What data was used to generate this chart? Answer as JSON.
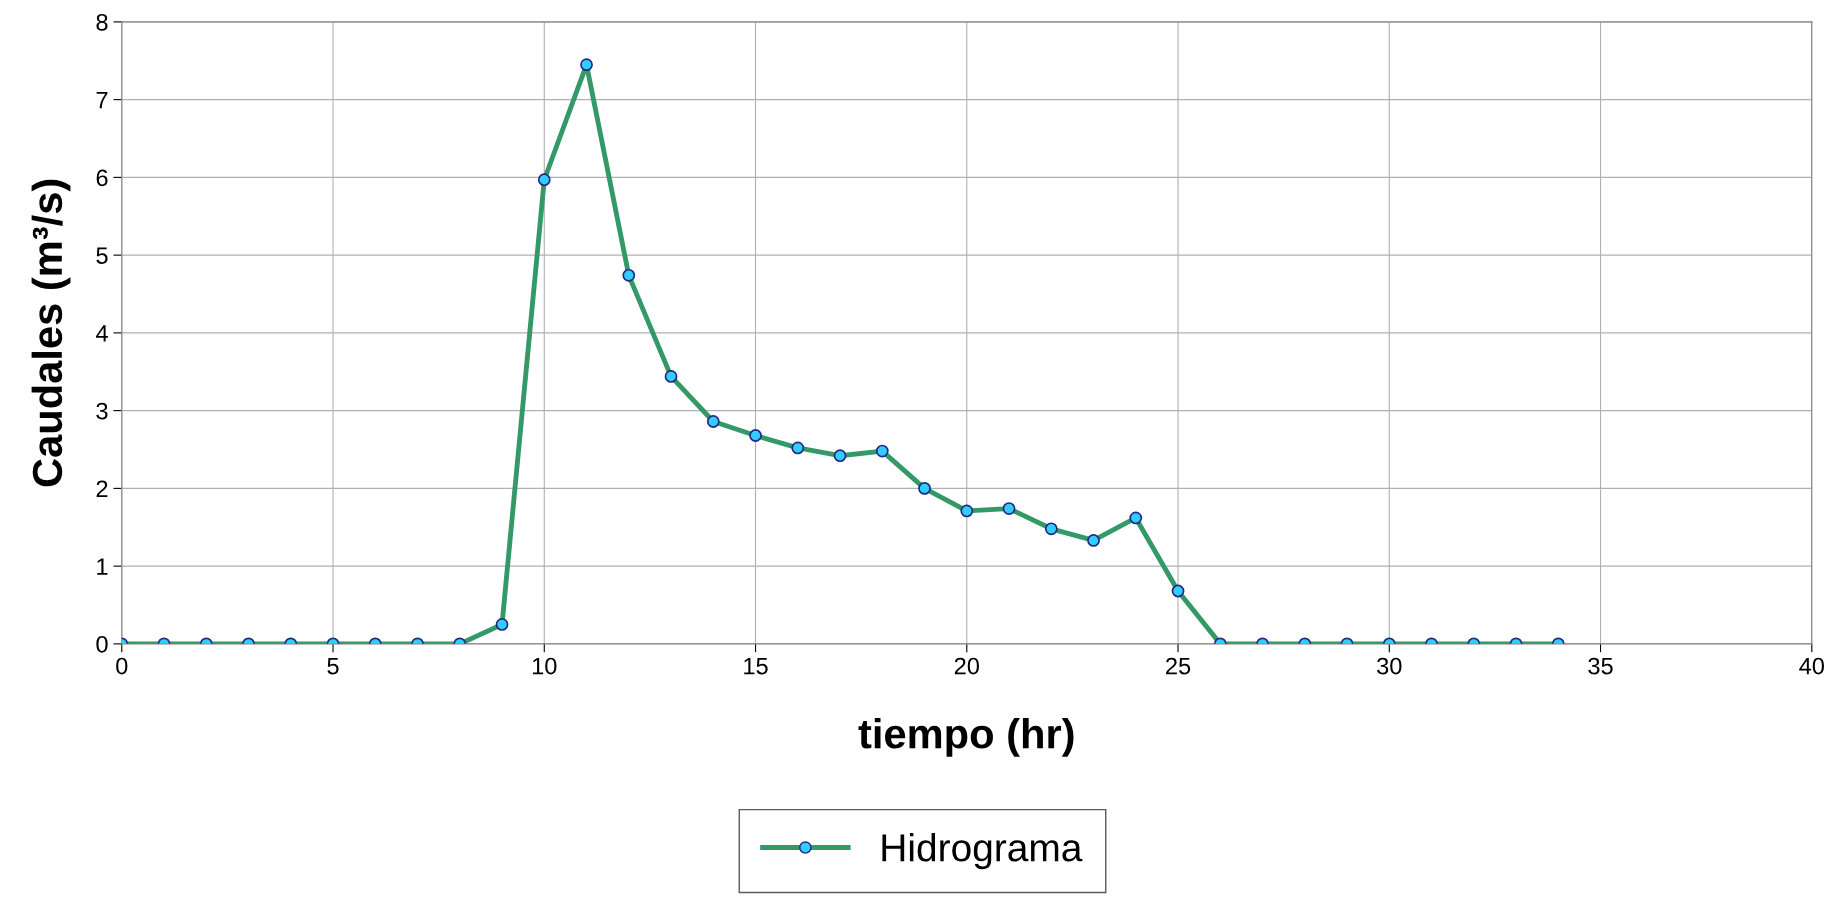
{
  "chart_data": {
    "type": "line",
    "xlabel": "tiempo (hr)",
    "ylabel": "Caudales (m³/s)",
    "x": [
      0,
      1,
      2,
      3,
      4,
      5,
      6,
      7,
      8,
      9,
      10,
      11,
      12,
      13,
      14,
      15,
      16,
      17,
      18,
      19,
      20,
      21,
      22,
      23,
      24,
      25,
      26,
      27,
      28,
      29,
      30,
      31,
      32,
      33,
      34
    ],
    "series": [
      {
        "name": "Hidrograma",
        "color": "#339966",
        "values": [
          0,
          0,
          0,
          0,
          0,
          0,
          0,
          0,
          0,
          0.25,
          5.97,
          7.45,
          4.74,
          3.44,
          2.86,
          2.68,
          2.52,
          2.42,
          2.48,
          2.0,
          1.71,
          1.74,
          1.48,
          1.33,
          1.62,
          0.68,
          0,
          0,
          0,
          0,
          0,
          0,
          0,
          0,
          0
        ]
      }
    ],
    "xlim": [
      0,
      40
    ],
    "xticks": [
      0,
      5,
      10,
      15,
      20,
      25,
      30,
      35,
      40
    ],
    "ylim": [
      0,
      8
    ],
    "yticks": [
      0,
      1,
      2,
      3,
      4,
      5,
      6,
      7,
      8
    ],
    "grid": true,
    "legend": "bottom",
    "marker": "circle",
    "line_style": "solid"
  }
}
